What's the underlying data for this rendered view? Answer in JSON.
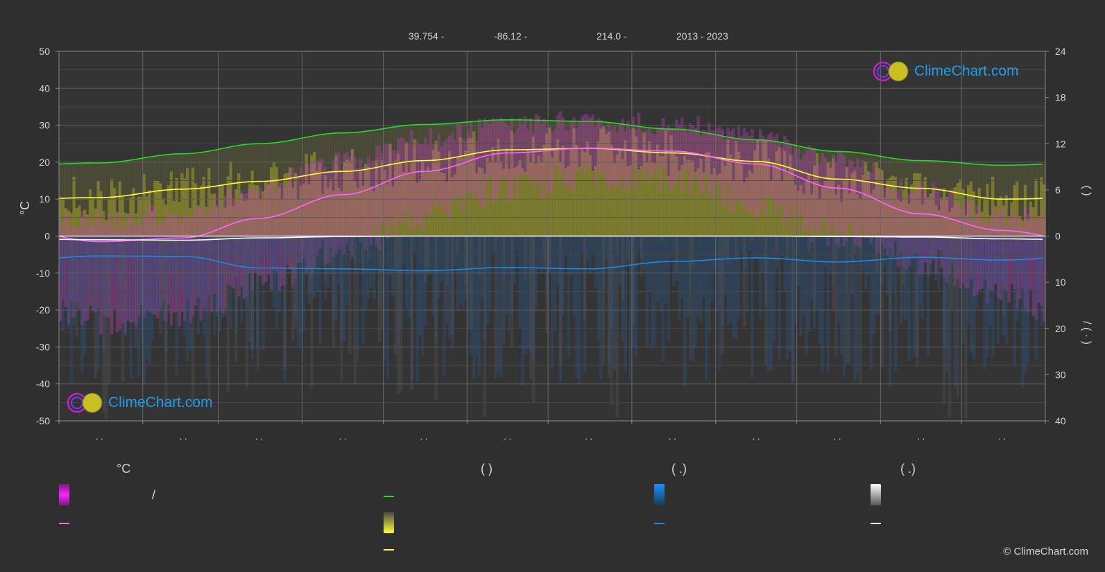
{
  "header": {
    "latitude": "39.754 -",
    "longitude": "-86.12 -",
    "elevation": "214.0 -",
    "years": "2013 - 2023"
  },
  "logo_text": "ClimeChart.com",
  "copyright": "© ClimeChart.com",
  "legend": {
    "heading_temperature": "°C",
    "heading_daylight": "(          )",
    "heading_rain": "(    .)",
    "heading_snow": "(    .)",
    "slash": "/",
    "colors": {
      "temp_range": "#e020e0",
      "temp_mean": "#ff66ff",
      "daylight": "#22dd22",
      "sunshine": "#d8d830",
      "sunshine_line": "#ffff44",
      "rain": "#1e88e5",
      "snow": "#ffffff"
    }
  },
  "chart_data": {
    "type": "line",
    "months_x": [
      15,
      46,
      74,
      105,
      135,
      166,
      196,
      227,
      258,
      288,
      319,
      349
    ],
    "x_tick_labels": [
      ". .",
      ". .",
      ". .",
      ". .",
      ". .",
      ". .",
      ". .",
      ". .",
      ". .",
      ". .",
      ". .",
      ". ."
    ],
    "left_axis": {
      "label": "°C",
      "ylim": [
        -50,
        50
      ],
      "ticks": [
        50,
        40,
        30,
        20,
        10,
        0,
        -10,
        -20,
        -30,
        -40,
        -50
      ]
    },
    "right_axis_top": {
      "ylim": [
        0,
        24
      ],
      "ticks": [
        24,
        18,
        12,
        6,
        0
      ],
      "label": "(    )"
    },
    "right_axis_bottom": {
      "ylim": [
        0,
        40
      ],
      "ticks": [
        0,
        10,
        20,
        30,
        40
      ],
      "label": "/  (  ·  )"
    },
    "series": [
      {
        "key": "daylight",
        "axis": "hours",
        "color": "#22dd22",
        "values": [
          9.5,
          10.7,
          12.0,
          13.4,
          14.5,
          15.1,
          14.9,
          13.9,
          12.5,
          11.0,
          9.8,
          9.2
        ]
      },
      {
        "key": "sunshine",
        "axis": "hours",
        "color": "#ffff44",
        "values": [
          5.0,
          6.1,
          7.1,
          8.4,
          9.8,
          11.2,
          11.4,
          10.8,
          9.7,
          7.4,
          6.2,
          4.8
        ]
      },
      {
        "key": "mean_temp",
        "axis": "celsius",
        "color": "#ff66ff",
        "values": [
          -1.5,
          -0.5,
          4.8,
          11.2,
          17.5,
          22.5,
          23.8,
          23.0,
          19.5,
          13.0,
          6.0,
          1.5
        ]
      },
      {
        "key": "rain",
        "axis": "mm",
        "color": "#1e88e5",
        "values": [
          4.3,
          4.4,
          6.9,
          7.1,
          7.5,
          6.8,
          7.1,
          5.5,
          4.7,
          5.6,
          4.6,
          5.2
        ]
      },
      {
        "key": "snow",
        "axis": "mm",
        "color": "#ffffff",
        "values": [
          0.8,
          0.9,
          0.4,
          0.1,
          0.0,
          0.0,
          0.0,
          0.0,
          0.0,
          0.1,
          0.2,
          0.6
        ]
      }
    ],
    "temp_max_envelope": [
      3,
      5,
      12,
      19,
      25,
      29,
      30,
      29,
      26,
      19,
      11,
      4
    ],
    "temp_min_envelope": [
      -22,
      -20,
      -12,
      -3,
      6,
      14,
      17,
      16,
      9,
      1,
      -6,
      -16
    ],
    "grid": true
  }
}
